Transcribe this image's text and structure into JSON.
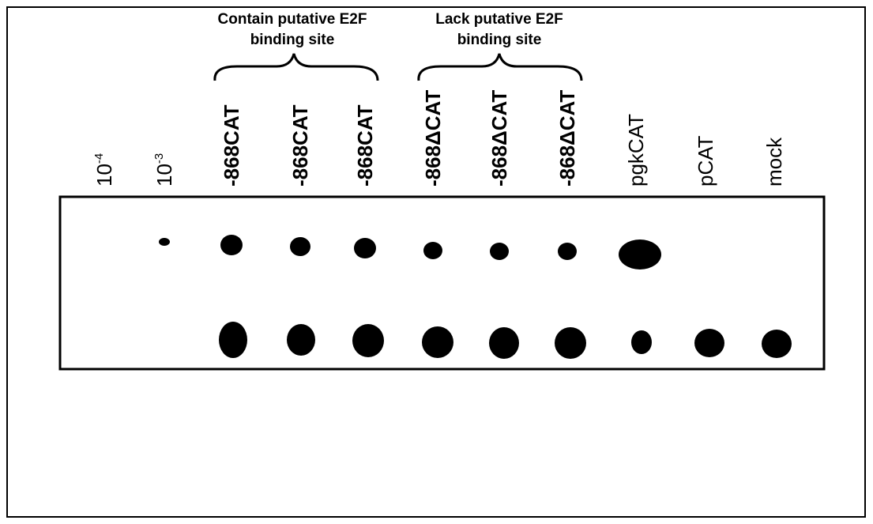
{
  "groups": [
    {
      "lines": [
        "Contain putative E2F",
        "binding site"
      ]
    },
    {
      "lines": [
        "Lack putative E2F",
        "binding site"
      ]
    }
  ],
  "lanes": [
    {
      "base": "10",
      "exp": "-4"
    },
    {
      "base": "10",
      "exp": "-3"
    },
    {
      "label": "-868CAT"
    },
    {
      "label": "-868CAT"
    },
    {
      "label": "-868CAT"
    },
    {
      "label": "-868ΔCAT"
    },
    {
      "label": "-868ΔCAT"
    },
    {
      "label": "-868ΔCAT"
    },
    {
      "label": "pgkCAT"
    },
    {
      "label": "pCAT"
    },
    {
      "label": "mock"
    }
  ]
}
